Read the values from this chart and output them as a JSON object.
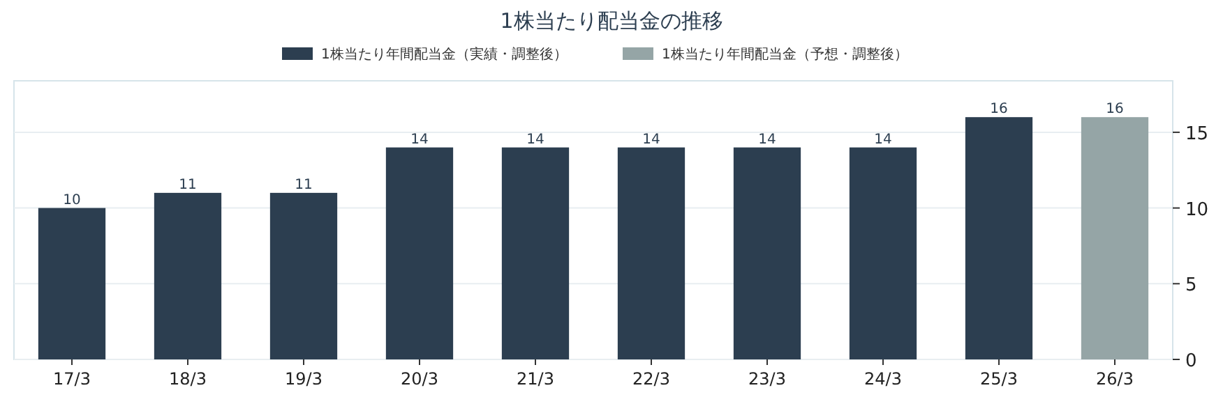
{
  "chart_data": {
    "type": "bar",
    "title": "1株当たり配当金の推移",
    "categories": [
      "17/3",
      "18/3",
      "19/3",
      "20/3",
      "21/3",
      "22/3",
      "23/3",
      "24/3",
      "25/3",
      "26/3"
    ],
    "series": [
      {
        "name": "1株当たり年間配当金（実績・調整後）",
        "color": "#2c3e50",
        "values": [
          10,
          11,
          11,
          14,
          14,
          14,
          14,
          14,
          16,
          null
        ]
      },
      {
        "name": "1株当たり年間配当金（予想・調整後）",
        "color": "#95a5a6",
        "values": [
          null,
          null,
          null,
          null,
          null,
          null,
          null,
          null,
          null,
          16
        ]
      }
    ],
    "stacked": true,
    "ylim": [
      0,
      18.4
    ],
    "yticks": [
      0,
      5,
      10,
      15
    ],
    "grid": "y",
    "legend": "top",
    "data_labels": true
  }
}
